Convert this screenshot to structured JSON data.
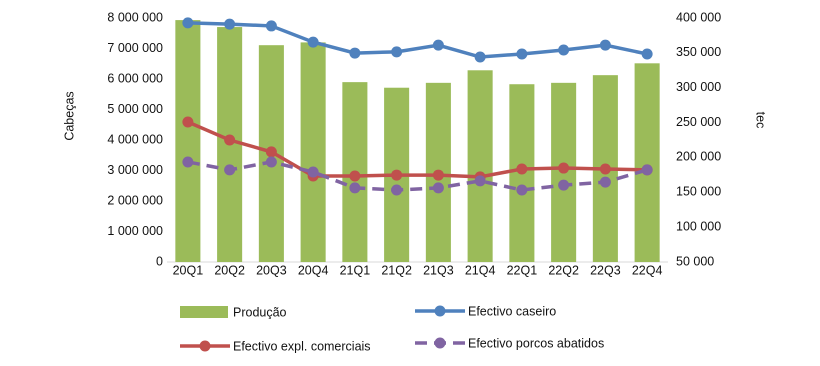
{
  "chart_data": {
    "type": "combo",
    "y_label": "Cabeças",
    "y2_label": "tec",
    "categories": [
      "20Q1",
      "20Q2",
      "20Q3",
      "20Q4",
      "21Q1",
      "21Q2",
      "21Q3",
      "21Q4",
      "22Q1",
      "22Q2",
      "22Q3",
      "22Q4"
    ],
    "ylim": [
      0,
      8000000
    ],
    "yticks": [
      0,
      {
        "value": 1000000,
        "label": "1 000 000"
      },
      {
        "value": 2000000,
        "label": "2 000 000"
      },
      {
        "value": 3000000,
        "label": "3 000 000"
      },
      {
        "value": 4000000,
        "label": "4 000 000"
      },
      {
        "value": 5000000,
        "label": "5 000 000"
      },
      {
        "value": 6000000,
        "label": "6 000 000"
      },
      {
        "value": 7000000,
        "label": "7 000 000"
      },
      {
        "value": 8000000,
        "label": "8 000 000"
      }
    ],
    "y2lim": [
      50000,
      400000
    ],
    "y2ticks": [
      {
        "value": 50000,
        "label": "50 000"
      },
      {
        "value": 100000,
        "label": "100 000"
      },
      {
        "value": 150000,
        "label": "150 000"
      },
      {
        "value": 200000,
        "label": "200 000"
      },
      {
        "value": 250000,
        "label": "250 000"
      },
      {
        "value": 300000,
        "label": "300 000"
      },
      {
        "value": 350000,
        "label": "350 000"
      },
      {
        "value": 400000,
        "label": "400 000"
      }
    ],
    "series": [
      {
        "name": "Produção",
        "type": "bar",
        "axis": "y2",
        "color": "#9bbb59",
        "values": [
          397000,
          387000,
          361000,
          365000,
          308000,
          300000,
          307000,
          325000,
          305000,
          307000,
          318000,
          335000
        ]
      },
      {
        "name": "Efectivo caseiro",
        "type": "line",
        "color": "#4f81bd",
        "values": [
          7840000,
          7800000,
          7740000,
          7210000,
          6850000,
          6890000,
          7110000,
          6720000,
          6820000,
          6950000,
          7110000,
          6820000
        ]
      },
      {
        "name": "Efectivo expl. comerciais",
        "type": "line",
        "color": "#c0504d",
        "values": [
          4590000,
          4000000,
          3610000,
          2820000,
          2820000,
          2850000,
          2850000,
          2790000,
          3050000,
          3080000,
          3050000,
          3020000
        ]
      },
      {
        "name": "Efectivo porcos abatidos",
        "type": "line",
        "dashed": true,
        "color": "#8064a2",
        "values": [
          3280000,
          3020000,
          3280000,
          2950000,
          2430000,
          2360000,
          2430000,
          2660000,
          2360000,
          2520000,
          2620000,
          3020000
        ]
      }
    ]
  }
}
